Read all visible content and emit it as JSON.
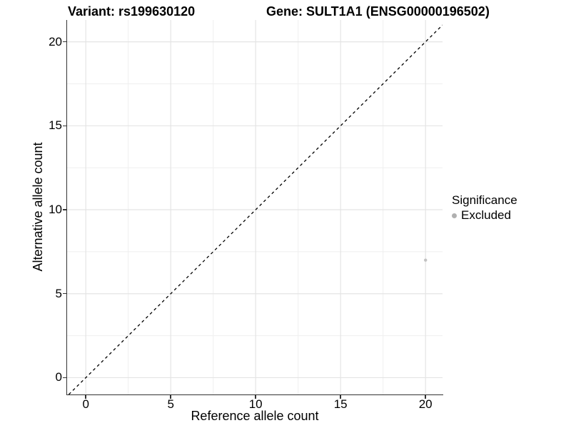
{
  "titles": {
    "variant": "Variant: rs199630120",
    "gene": "Gene: SULT1A1 (ENSG00000196502)"
  },
  "axes": {
    "x_title": "Reference allele count",
    "y_title": "Alternative allele count"
  },
  "legend": {
    "title": "Significance",
    "items": [
      {
        "label": "Excluded",
        "marker_color": "#b0b0b0"
      }
    ]
  },
  "chart_data": {
    "type": "scatter",
    "title": "Variant: rs199630120 | Gene: SULT1A1 (ENSG00000196502)",
    "xlabel": "Reference allele count",
    "ylabel": "Alternative allele count",
    "xlim": [
      -1.1,
      21.0
    ],
    "ylim": [
      -1.0,
      21.3
    ],
    "x_ticks": [
      0,
      5,
      10,
      15,
      20
    ],
    "y_ticks": [
      0,
      5,
      10,
      15,
      20
    ],
    "x_minor_ticks": [
      2.5,
      7.5,
      12.5,
      17.5
    ],
    "y_minor_ticks": [
      2.5,
      7.5,
      12.5,
      17.5
    ],
    "grid": "major+minor",
    "legend_position": "right",
    "reference_line": {
      "kind": "identity",
      "slope": 1,
      "intercept": 0,
      "style": "dashed",
      "color": "#000000"
    },
    "series": [
      {
        "name": "Excluded",
        "color": "#c2c2c2",
        "points": [
          [
            20,
            7
          ]
        ]
      }
    ]
  },
  "style": {
    "background": "#ffffff",
    "grid_major_color": "#e4e4e4",
    "grid_minor_color": "#efefef",
    "axis_line_color": "#333333",
    "text_color": "#000000",
    "reference_line_color": "#000000",
    "point_color": "#c2c2c2"
  }
}
